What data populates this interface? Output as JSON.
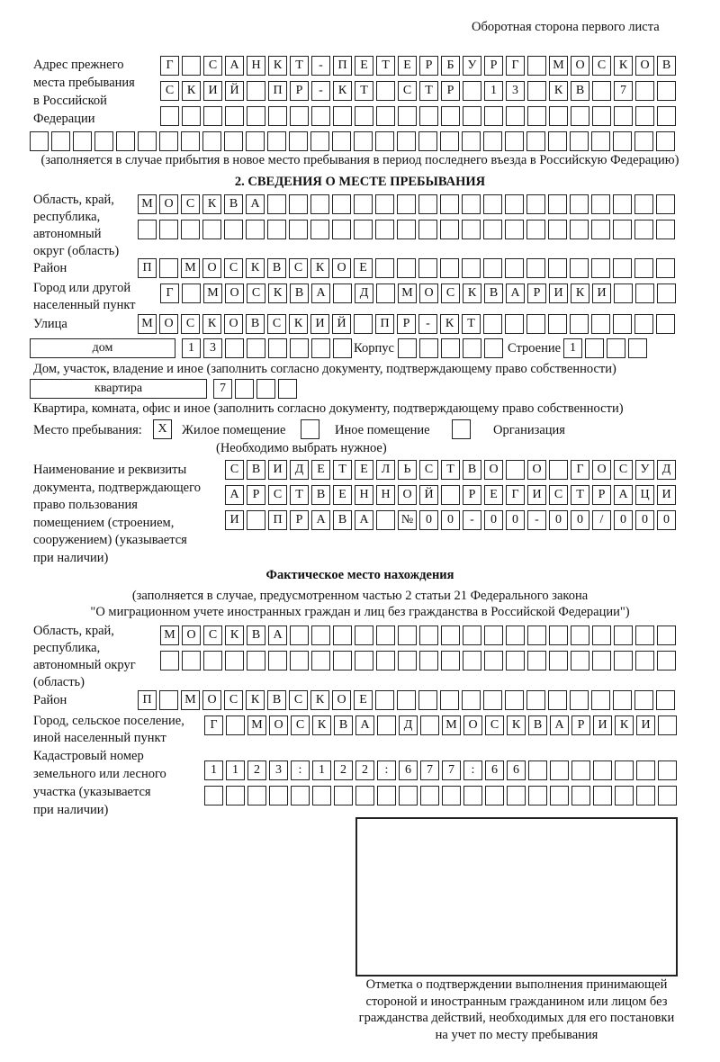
{
  "header": "Оборотная сторона первого листа",
  "prev_address": {
    "label": [
      "Адрес прежнего",
      "места пребывания",
      "в Российской",
      "Федерации"
    ],
    "rows": [
      [
        "Г",
        "",
        "С",
        "А",
        "Н",
        "К",
        "Т",
        "-",
        "П",
        "Е",
        "Т",
        "Е",
        "Р",
        "Б",
        "У",
        "Р",
        "Г",
        "",
        "М",
        "О",
        "С",
        "К",
        "О",
        "В"
      ],
      [
        "С",
        "К",
        "И",
        "Й",
        "",
        "П",
        "Р",
        "-",
        "К",
        "Т",
        "",
        "С",
        "Т",
        "Р",
        "",
        "1",
        "3",
        "",
        "К",
        "В",
        "",
        "7",
        "",
        ""
      ],
      [
        "",
        "",
        "",
        "",
        "",
        "",
        "",
        "",
        "",
        "",
        "",
        "",
        "",
        "",
        "",
        "",
        "",
        "",
        "",
        "",
        "",
        "",
        "",
        ""
      ],
      [
        "",
        "",
        "",
        "",
        "",
        "",
        "",
        "",
        "",
        "",
        "",
        "",
        "",
        "",
        "",
        "",
        "",
        "",
        "",
        "",
        "",
        "",
        "",
        "",
        "",
        "",
        "",
        "",
        "",
        ""
      ]
    ],
    "note": "(заполняется в случае прибытия в новое место пребывания в период последнего въезда в Российскую Федерацию)"
  },
  "section2": {
    "title": "2. СВЕДЕНИЯ О МЕСТЕ ПРЕБЫВАНИЯ",
    "region_label": [
      "Область, край,",
      "республика,",
      "автономный",
      "округ (область)"
    ],
    "region_rows": [
      [
        "М",
        "О",
        "С",
        "К",
        "В",
        "А",
        "",
        "",
        "",
        "",
        "",
        "",
        "",
        "",
        "",
        "",
        "",
        "",
        "",
        "",
        "",
        "",
        "",
        "",
        ""
      ],
      [
        "",
        "",
        "",
        "",
        "",
        "",
        "",
        "",
        "",
        "",
        "",
        "",
        "",
        "",
        "",
        "",
        "",
        "",
        "",
        "",
        "",
        "",
        "",
        "",
        ""
      ]
    ],
    "district_label": "Район",
    "district": [
      "П",
      "",
      "М",
      "О",
      "С",
      "К",
      "В",
      "С",
      "К",
      "О",
      "Е",
      "",
      "",
      "",
      "",
      "",
      "",
      "",
      "",
      "",
      "",
      "",
      "",
      "",
      ""
    ],
    "city_label": [
      "Город или другой",
      "населенный пункт"
    ],
    "city": [
      "Г",
      "",
      "М",
      "О",
      "С",
      "К",
      "В",
      "А",
      "",
      "Д",
      "",
      "М",
      "О",
      "С",
      "К",
      "В",
      "А",
      "Р",
      "И",
      "К",
      "И",
      "",
      "",
      ""
    ],
    "street_label": "Улица",
    "street": [
      "М",
      "О",
      "С",
      "К",
      "О",
      "В",
      "С",
      "К",
      "И",
      "Й",
      "",
      "П",
      "Р",
      "-",
      "К",
      "Т",
      "",
      "",
      "",
      "",
      "",
      "",
      "",
      "",
      ""
    ],
    "house_type": "дом",
    "house": [
      "1",
      "3",
      "",
      "",
      "",
      "",
      "",
      ""
    ],
    "korpus_label": "Корпус",
    "korpus": [
      "",
      "",
      "",
      "",
      ""
    ],
    "building_label": "Строение",
    "building": [
      "1",
      "",
      "",
      ""
    ],
    "house_note": "Дом, участок, владение и иное (заполнить согласно документу, подтверждающему право собственности)",
    "flat_type": "квартира",
    "flat": [
      "7",
      "",
      "",
      ""
    ],
    "flat_note": "Квартира, комната, офис и иное (заполнить согласно документу, подтверждающему право собственности)",
    "stay_label": "Место пребывания:",
    "stay_options": [
      {
        "mark": "X",
        "label": "Жилое помещение",
        "checked": true
      },
      {
        "mark": "",
        "label": "Иное помещение",
        "checked": false
      },
      {
        "mark": "",
        "label": "Организация",
        "checked": false
      }
    ],
    "stay_note": "(Необходимо выбрать нужное)",
    "doc_label": [
      "Наименование и реквизиты",
      "документа, подтверждающего",
      "право пользования",
      "помещением (строением,",
      "сооружением) (указывается",
      "при наличии)"
    ],
    "doc_rows": [
      [
        "С",
        "В",
        "И",
        "Д",
        "Е",
        "Т",
        "Е",
        "Л",
        "Ь",
        "С",
        "Т",
        "В",
        "О",
        "",
        "О",
        "",
        "Г",
        "О",
        "С",
        "У",
        "Д"
      ],
      [
        "А",
        "Р",
        "С",
        "Т",
        "В",
        "Е",
        "Н",
        "Н",
        "О",
        "Й",
        "",
        "Р",
        "Е",
        "Г",
        "И",
        "С",
        "Т",
        "Р",
        "А",
        "Ц",
        "И"
      ],
      [
        "И",
        "",
        "П",
        "Р",
        "А",
        "В",
        "А",
        "",
        "№",
        "0",
        "0",
        "-",
        "0",
        "0",
        "-",
        "0",
        "0",
        "/",
        "0",
        "0",
        "0"
      ]
    ]
  },
  "actual": {
    "title": "Фактическое место нахождения",
    "note": [
      "(заполняется в случае, предусмотренном частью 2 статьи 21 Федерального закона",
      "\"О миграционном учете иностранных граждан и лиц без гражданства в Российской Федерации\")"
    ],
    "region_label": [
      "Область, край,",
      "республика,",
      "автономный округ",
      "(область)"
    ],
    "region_rows": [
      [
        "М",
        "О",
        "С",
        "К",
        "В",
        "А",
        "",
        "",
        "",
        "",
        "",
        "",
        "",
        "",
        "",
        "",
        "",
        "",
        "",
        "",
        "",
        "",
        "",
        ""
      ],
      [
        "",
        "",
        "",
        "",
        "",
        "",
        "",
        "",
        "",
        "",
        "",
        "",
        "",
        "",
        "",
        "",
        "",
        "",
        "",
        "",
        "",
        "",
        "",
        ""
      ]
    ],
    "district_label": "Район",
    "district": [
      "П",
      "",
      "М",
      "О",
      "С",
      "К",
      "В",
      "С",
      "К",
      "О",
      "Е",
      "",
      "",
      "",
      "",
      "",
      "",
      "",
      "",
      "",
      "",
      "",
      "",
      "",
      ""
    ],
    "city_label": [
      "Город, сельское поселение,",
      "иной населенный пункт"
    ],
    "city": [
      "Г",
      "",
      "М",
      "О",
      "С",
      "К",
      "В",
      "А",
      "",
      "Д",
      "",
      "М",
      "О",
      "С",
      "К",
      "В",
      "А",
      "Р",
      "И",
      "К",
      "И",
      ""
    ],
    "cadastre_label": [
      "Кадастровый номер",
      "земельного или лесного",
      "участка (указывается",
      "при наличии)"
    ],
    "cadastre_rows": [
      [
        "1",
        "1",
        "2",
        "3",
        ":",
        "1",
        "2",
        "2",
        ":",
        "6",
        "7",
        "7",
        ":",
        "6",
        "6",
        "",
        "",
        "",
        "",
        "",
        "",
        ""
      ],
      [
        "",
        "",
        "",
        "",
        "",
        "",
        "",
        "",
        "",
        "",
        "",
        "",
        "",
        "",
        "",
        "",
        "",
        "",
        "",
        "",
        "",
        ""
      ]
    ]
  },
  "stamp_caption": [
    "Отметка о подтверждении выполнения принимающей",
    "стороной и иностранным гражданином или лицом без",
    "гражданства действий, необходимых для его постановки",
    "на учет по месту пребывания"
  ]
}
